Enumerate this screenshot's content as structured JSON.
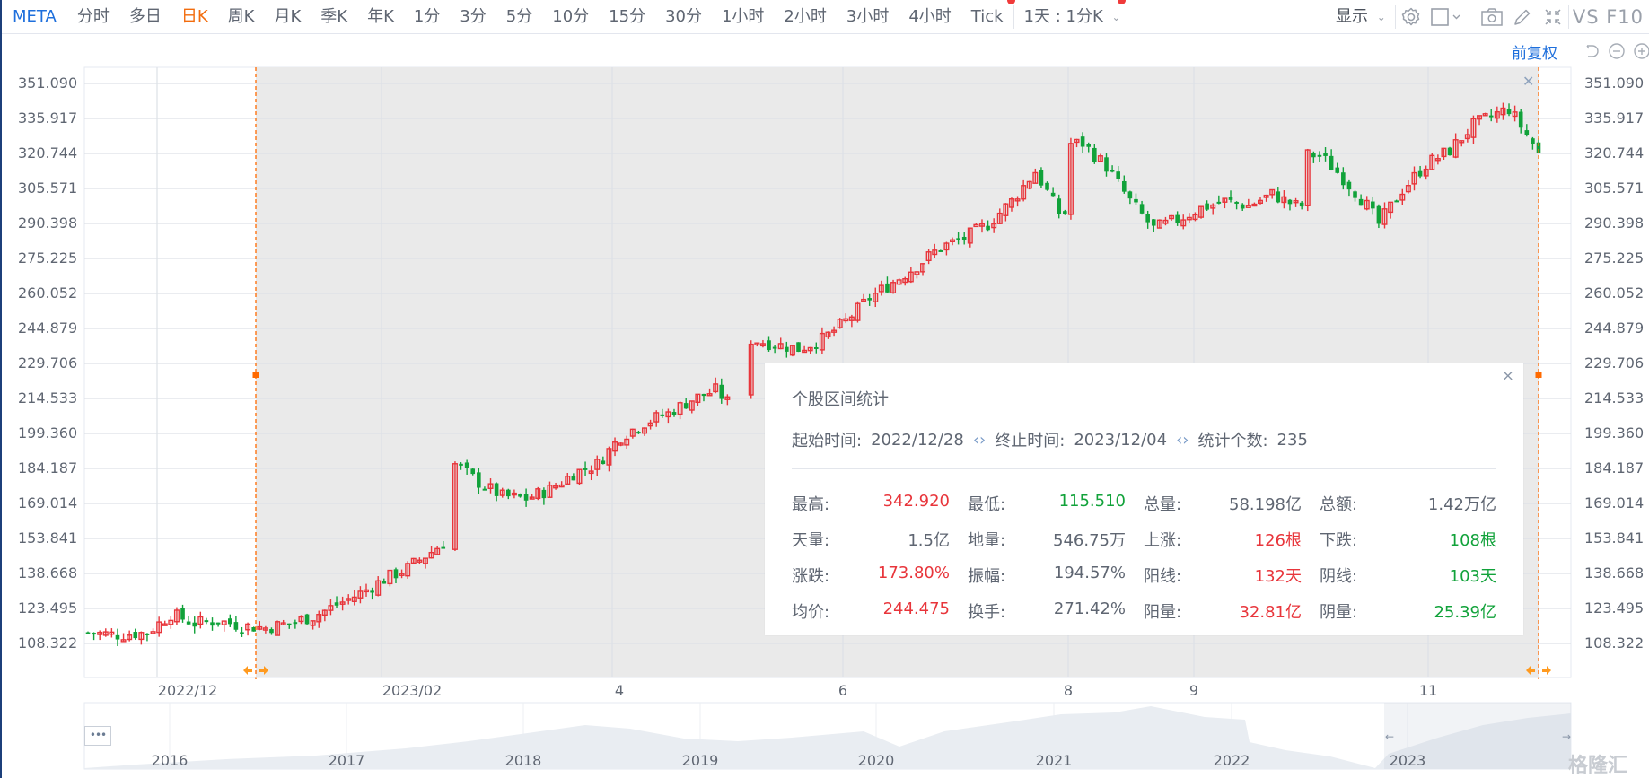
{
  "toolbar": {
    "symbol": "META",
    "periods": [
      "分时",
      "多日",
      "日K",
      "周K",
      "月K",
      "季K",
      "年K",
      "1分",
      "3分",
      "5分",
      "10分",
      "15分",
      "30分",
      "1小时",
      "2小时",
      "3小时",
      "4小时",
      "Tick"
    ],
    "active_period": "日K",
    "custom_period": "1天 : 1分K",
    "display_label": "显示",
    "vs_f10": "VS F10",
    "icons": [
      "gear-icon",
      "square-icon",
      "camera-icon",
      "pencil-icon",
      "collapse-icon"
    ]
  },
  "subbar": {
    "adjust_label": "前复权",
    "icons": [
      "undo-icon",
      "zoom-out-icon",
      "zoom-in-icon"
    ]
  },
  "popup": {
    "title": "个股区间统计",
    "start_label": "起始时间:",
    "start_value": "2022/12/28",
    "end_label": "终止时间:",
    "end_value": "2023/12/04",
    "count_label": "统计个数:",
    "count_value": "235",
    "close": "×",
    "stats": [
      [
        {
          "label": "最高:",
          "value": "342.920",
          "tone": "up"
        },
        {
          "label": "最低:",
          "value": "115.510",
          "tone": "down"
        },
        {
          "label": "总量:",
          "value": "58.198亿",
          "tone": "neu"
        },
        {
          "label": "总额:",
          "value": "1.42万亿",
          "tone": "neu"
        }
      ],
      [
        {
          "label": "天量:",
          "value": "1.5亿",
          "tone": "neu"
        },
        {
          "label": "地量:",
          "value": "546.75万",
          "tone": "neu"
        },
        {
          "label": "上涨:",
          "value": "126根",
          "tone": "up"
        },
        {
          "label": "下跌:",
          "value": "108根",
          "tone": "down"
        }
      ],
      [
        {
          "label": "涨跌:",
          "value": "173.80%",
          "tone": "up"
        },
        {
          "label": "振幅:",
          "value": "194.57%",
          "tone": "neu"
        },
        {
          "label": "阳线:",
          "value": "132天",
          "tone": "up"
        },
        {
          "label": "阴线:",
          "value": "103天",
          "tone": "down"
        }
      ],
      [
        {
          "label": "均价:",
          "value": "244.475",
          "tone": "up"
        },
        {
          "label": "换手:",
          "value": "271.42%",
          "tone": "neu"
        },
        {
          "label": "阳量:",
          "value": "32.81亿",
          "tone": "up"
        },
        {
          "label": "阴量:",
          "value": "25.39亿",
          "tone": "down"
        }
      ]
    ]
  },
  "navigator": {
    "years": [
      "2016",
      "2017",
      "2018",
      "2019",
      "2020",
      "2021",
      "2022",
      "2023"
    ],
    "more_label": "•••"
  },
  "watermark": "格隆汇",
  "colors": {
    "up": "#e8353b",
    "down": "#11a23a",
    "accent": "#1e6fdc",
    "active": "#f26c0d",
    "selection_bg": "#eaeaea",
    "marker": "#ff6a00"
  },
  "chart_data": {
    "type": "candlestick",
    "title": "META 日K",
    "xlabel": "",
    "ylabel": "",
    "y_ticks": [
      "351.090",
      "335.917",
      "320.744",
      "305.571",
      "290.398",
      "275.225",
      "260.052",
      "244.879",
      "229.706",
      "214.533",
      "199.360",
      "184.187",
      "169.014",
      "153.841",
      "138.668",
      "123.495",
      "108.322"
    ],
    "x_ticks": [
      "2022/12",
      "2023/02",
      "4",
      "6",
      "8",
      "9",
      "11"
    ],
    "ylim": [
      100,
      357
    ],
    "grid": true,
    "selection": {
      "start": "2022/12/28",
      "end": "2023/12/04"
    },
    "approx_close_path": [
      [
        0,
        113
      ],
      [
        5,
        112
      ],
      [
        10,
        113
      ],
      [
        14,
        121
      ],
      [
        18,
        117
      ],
      [
        22,
        118
      ],
      [
        26,
        116
      ],
      [
        30,
        115
      ],
      [
        34,
        117
      ],
      [
        38,
        120
      ],
      [
        42,
        125
      ],
      [
        46,
        130
      ],
      [
        50,
        136
      ],
      [
        54,
        141
      ],
      [
        58,
        148
      ],
      [
        60,
        152
      ],
      [
        62,
        186
      ],
      [
        66,
        178
      ],
      [
        70,
        172
      ],
      [
        74,
        171
      ],
      [
        78,
        175
      ],
      [
        82,
        182
      ],
      [
        86,
        186
      ],
      [
        90,
        198
      ],
      [
        94,
        204
      ],
      [
        98,
        208
      ],
      [
        102,
        214
      ],
      [
        106,
        218
      ],
      [
        108,
        213
      ],
      [
        112,
        240
      ],
      [
        116,
        238
      ],
      [
        120,
        236
      ],
      [
        124,
        240
      ],
      [
        128,
        248
      ],
      [
        132,
        258
      ],
      [
        136,
        265
      ],
      [
        140,
        272
      ],
      [
        144,
        280
      ],
      [
        148,
        284
      ],
      [
        152,
        290
      ],
      [
        156,
        300
      ],
      [
        160,
        313
      ],
      [
        164,
        295
      ],
      [
        168,
        325
      ],
      [
        172,
        315
      ],
      [
        176,
        300
      ],
      [
        180,
        288
      ],
      [
        184,
        292
      ],
      [
        188,
        297
      ],
      [
        192,
        300
      ],
      [
        196,
        298
      ],
      [
        200,
        303
      ],
      [
        204,
        298
      ],
      [
        208,
        320
      ],
      [
        212,
        310
      ],
      [
        216,
        298
      ],
      [
        218,
        290
      ],
      [
        222,
        305
      ],
      [
        226,
        316
      ],
      [
        230,
        322
      ],
      [
        234,
        333
      ],
      [
        238,
        338
      ],
      [
        240,
        340
      ],
      [
        244,
        325
      ],
      [
        246,
        316
      ]
    ]
  }
}
